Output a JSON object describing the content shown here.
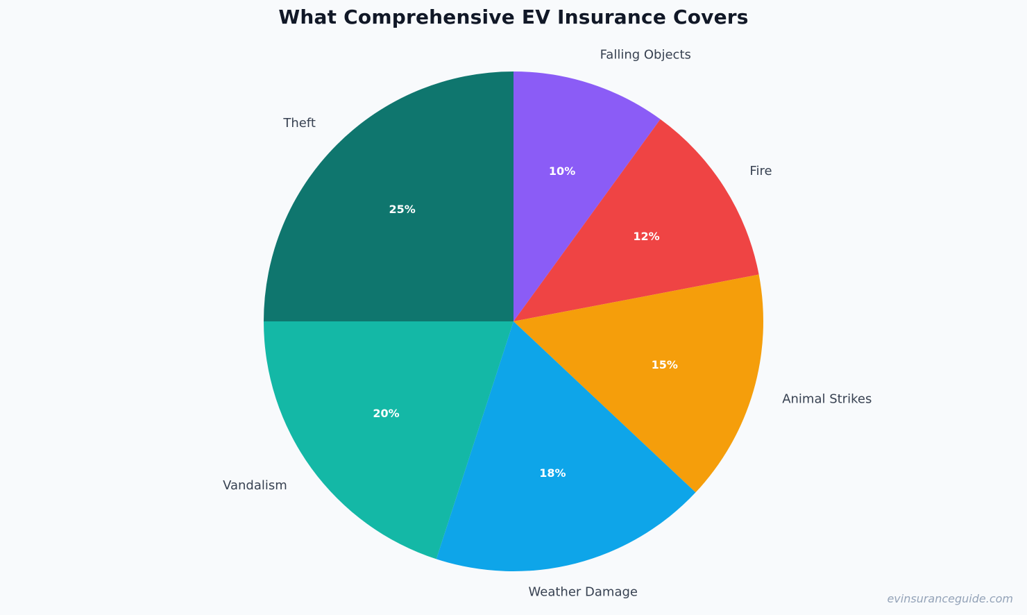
{
  "chart_data": {
    "type": "pie",
    "title": "What Comprehensive EV Insurance Covers",
    "slices": [
      {
        "label": "Falling Objects",
        "value": 10,
        "display": "10%",
        "color": "#8b5cf6"
      },
      {
        "label": "Fire",
        "value": 12,
        "display": "12%",
        "color": "#ef4444"
      },
      {
        "label": "Animal Strikes",
        "value": 15,
        "display": "15%",
        "color": "#f59e0b"
      },
      {
        "label": "Weather Damage",
        "value": 18,
        "display": "18%",
        "color": "#0ea5e9"
      },
      {
        "label": "Vandalism",
        "value": 20,
        "display": "20%",
        "color": "#14b8a6"
      },
      {
        "label": "Theft",
        "value": 25,
        "display": "25%",
        "color": "#0f766e"
      }
    ],
    "start_angle": "12 o'clock",
    "direction": "clockwise"
  },
  "watermark": "evinsuranceguide.com"
}
